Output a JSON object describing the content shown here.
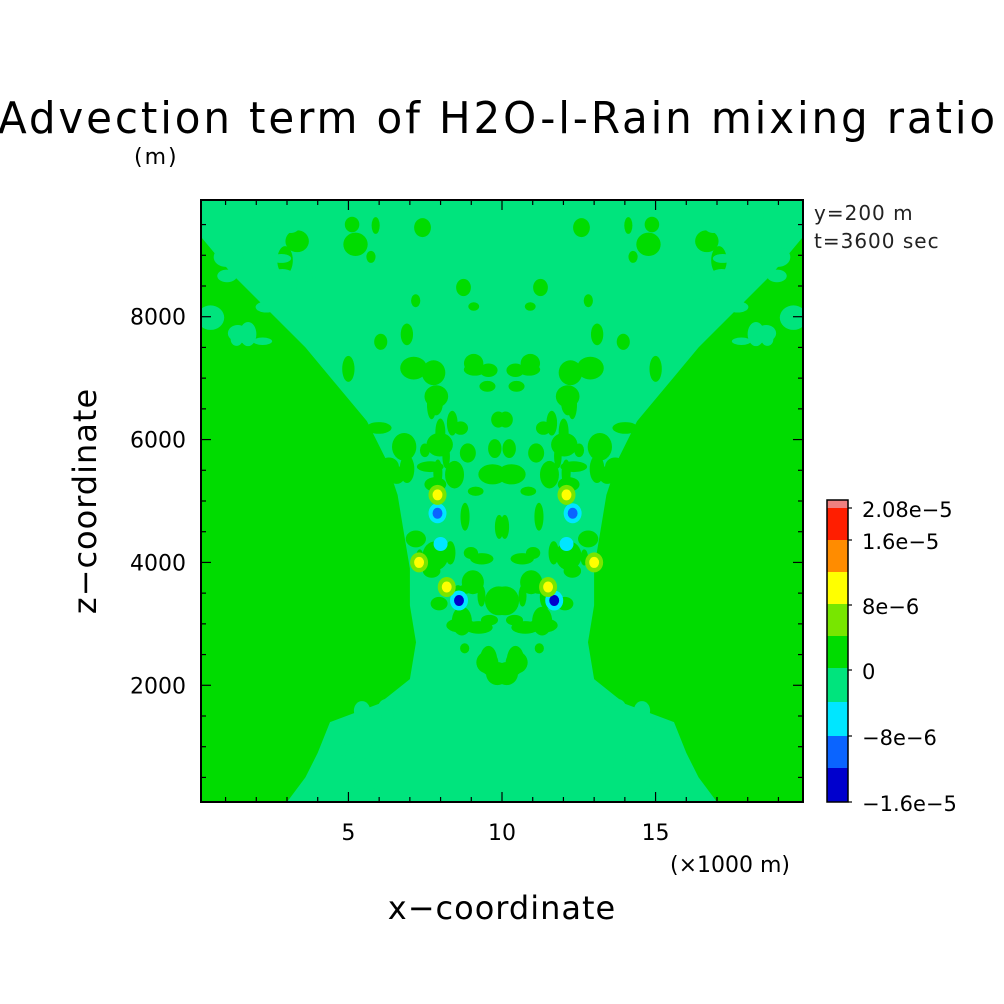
{
  "chart_data": {
    "type": "heatmap",
    "title": "Advection term of H2O-l-Rain mixing ratio",
    "units_label": "(m)",
    "xlabel": "x−coordinate",
    "ylabel": "z−coordinate",
    "x_units_label": "(×1000 m)",
    "annotations": [
      "y=200 m",
      "t=3600 sec"
    ],
    "xlim": [
      0.2,
      19.8
    ],
    "ylim": [
      100,
      9900
    ],
    "x_ticks": [
      5,
      10,
      15
    ],
    "y_ticks": [
      2000,
      4000,
      6000,
      8000
    ],
    "grid": false,
    "colorbar": {
      "placement": "right",
      "levels": [
        -1.6e-05,
        -8e-06,
        0,
        8e-06,
        1.6e-05,
        2.08e-05
      ],
      "labels": [
        "−1.6e−5",
        "−8e−6",
        "0",
        "8e−6",
        "1.6e−5",
        "2.08e−5"
      ],
      "colors": [
        "#0000cd",
        "#0a64ff",
        "#00e6ff",
        "#00e47d",
        "#00dc00",
        "#78e600",
        "#ffff00",
        "#ff8c00",
        "#ff1e00",
        "#f08080"
      ]
    },
    "field_description_values": {
      "background_value_class": "0 to small positive",
      "plume_value_class": "0 to small negative",
      "features": [
        {
          "x": 8.6,
          "z": 3380,
          "value": -1.6e-05
        },
        {
          "x": 11.7,
          "z": 3380,
          "value": -1.6e-05
        },
        {
          "x": 7.9,
          "z": 4800,
          "value": -1e-05
        },
        {
          "x": 12.3,
          "z": 4800,
          "value": -1e-05
        },
        {
          "x": 7.3,
          "z": 4000,
          "value": 1e-05
        },
        {
          "x": 13.0,
          "z": 4000,
          "value": 1e-05
        },
        {
          "x": 8.2,
          "z": 3600,
          "value": 9e-06
        },
        {
          "x": 11.5,
          "z": 3600,
          "value": 9e-06
        },
        {
          "x": 12.1,
          "z": 5100,
          "value": 8e-06
        },
        {
          "x": 7.9,
          "z": 5100,
          "value": 8e-06
        },
        {
          "x": 8.0,
          "z": 4300,
          "value": -5e-06
        },
        {
          "x": 12.1,
          "z": 4300,
          "value": -5e-06
        }
      ]
    }
  }
}
